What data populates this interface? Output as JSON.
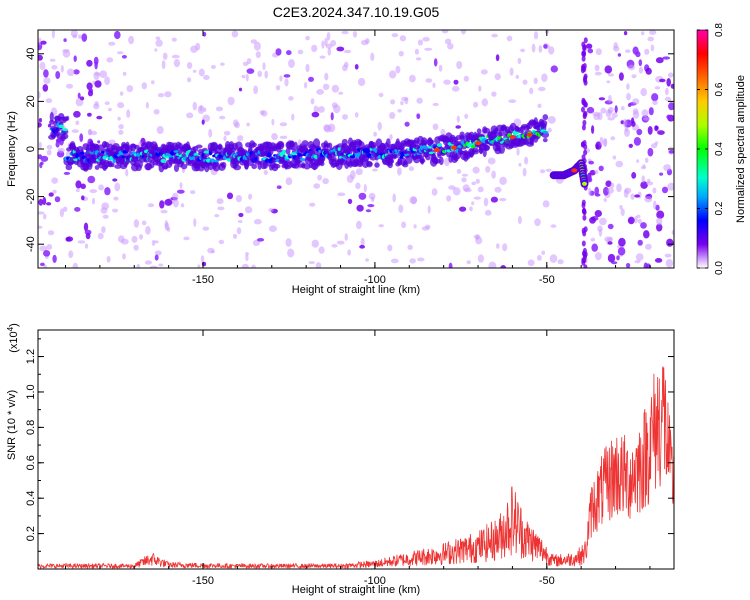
{
  "title": "C2E3.2024.347.10.19.G05",
  "chart_data": [
    {
      "type": "heatmap",
      "xlabel": "Height of straight line (km)",
      "ylabel": "Frequency (Hz)",
      "xlim": [
        -198,
        -13
      ],
      "ylim": [
        -50,
        50
      ],
      "x_ticks": [
        -150,
        -100,
        -50
      ],
      "y_ticks": [
        -40,
        -20,
        0,
        20,
        40
      ],
      "colorbar": {
        "label": "Normalized spectral amplitude",
        "range": [
          0,
          0.8
        ],
        "ticks": [
          0.0,
          0.2,
          0.4,
          0.6,
          0.8
        ],
        "colors": [
          "#ffffff",
          "#cc99ff",
          "#7700ee",
          "#0000ff",
          "#00aaff",
          "#00ffcc",
          "#00ff00",
          "#aaff00",
          "#ffcc00",
          "#ff6600",
          "#ff0000",
          "#ff00aa"
        ]
      },
      "ridge": [
        {
          "x": -190,
          "y": -3
        },
        {
          "x": -170,
          "y": -3
        },
        {
          "x": -150,
          "y": -3
        },
        {
          "x": -130,
          "y": -3
        },
        {
          "x": -110,
          "y": -2
        },
        {
          "x": -95,
          "y": -2
        },
        {
          "x": -85,
          "y": -1
        },
        {
          "x": -75,
          "y": 1
        },
        {
          "x": -65,
          "y": 4
        },
        {
          "x": -55,
          "y": 6
        },
        {
          "x": -50,
          "y": 9
        }
      ],
      "secondary_ridge": [
        {
          "x": -48,
          "y": -11
        },
        {
          "x": -45,
          "y": -11
        },
        {
          "x": -42,
          "y": -9
        },
        {
          "x": -40,
          "y": -6
        },
        {
          "x": -39,
          "y": -15
        }
      ]
    },
    {
      "type": "line",
      "xlabel": "Height of straight line (km)",
      "ylabel": "SNR (10 * v/v)",
      "y_multiplier": "(x10",
      "y_multiplier_exp": "4",
      "xlim": [
        -198,
        -13
      ],
      "ylim": [
        0,
        1.35
      ],
      "x_ticks": [
        -150,
        -100,
        -50
      ],
      "y_ticks": [
        0.2,
        0.4,
        0.6,
        0.8,
        1.0,
        1.2
      ],
      "color": "#ee3333",
      "envelope": [
        {
          "x": -198,
          "y": 0.03
        },
        {
          "x": -170,
          "y": 0.03
        },
        {
          "x": -165,
          "y": 0.1
        },
        {
          "x": -160,
          "y": 0.04
        },
        {
          "x": -140,
          "y": 0.03
        },
        {
          "x": -110,
          "y": 0.03
        },
        {
          "x": -100,
          "y": 0.05
        },
        {
          "x": -90,
          "y": 0.1
        },
        {
          "x": -80,
          "y": 0.15
        },
        {
          "x": -70,
          "y": 0.22
        },
        {
          "x": -64,
          "y": 0.3
        },
        {
          "x": -60,
          "y": 0.5
        },
        {
          "x": -56,
          "y": 0.3
        },
        {
          "x": -52,
          "y": 0.2
        },
        {
          "x": -48,
          "y": 0.08
        },
        {
          "x": -42,
          "y": 0.1
        },
        {
          "x": -39,
          "y": 0.15
        },
        {
          "x": -37,
          "y": 0.5
        },
        {
          "x": -34,
          "y": 0.65
        },
        {
          "x": -30,
          "y": 0.8
        },
        {
          "x": -26,
          "y": 0.75
        },
        {
          "x": -22,
          "y": 0.9
        },
        {
          "x": -18,
          "y": 1.2
        },
        {
          "x": -16,
          "y": 1.32
        },
        {
          "x": -14,
          "y": 0.8
        },
        {
          "x": -13,
          "y": 0.7
        }
      ]
    }
  ]
}
